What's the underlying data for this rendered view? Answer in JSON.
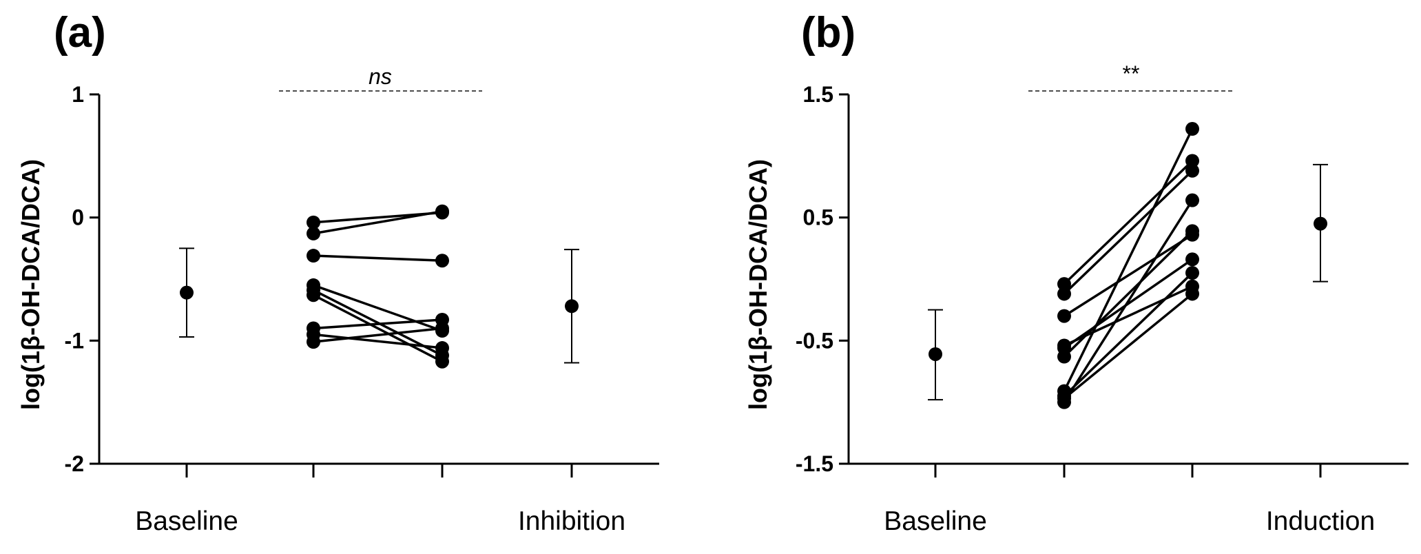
{
  "chart_data": [
    {
      "type": "scatter",
      "panel_label": "(a)",
      "ylabel": "log(1β-OH-DCA/DCA)",
      "ylim": [
        -2,
        1
      ],
      "yticks": [
        1,
        0,
        -1,
        -2
      ],
      "ytick_labels": [
        "1",
        "0",
        "-1",
        "-2"
      ],
      "x_positions": [
        "Baseline",
        "",
        "",
        "Inhibition"
      ],
      "x_labels": [
        "Baseline",
        "Inhibition"
      ],
      "summary": [
        {
          "category": "Baseline",
          "mean": -0.61,
          "upper": -0.25,
          "lower": -0.97
        },
        {
          "category": "Inhibition",
          "mean": -0.72,
          "upper": -0.26,
          "lower": -1.18
        }
      ],
      "paired": [
        [
          -0.04,
          0.04
        ],
        [
          -0.13,
          0.05
        ],
        [
          -0.31,
          -0.35
        ],
        [
          -0.55,
          -0.92
        ],
        [
          -0.59,
          -1.12
        ],
        [
          -0.63,
          -1.17
        ],
        [
          -0.9,
          -0.83
        ],
        [
          -0.95,
          -1.06
        ],
        [
          -1.01,
          -0.9
        ]
      ],
      "significance": "ns"
    },
    {
      "type": "scatter",
      "panel_label": "(b)",
      "ylabel": "log(1β-OH-DCA/DCA)",
      "ylim": [
        -1.5,
        1.5
      ],
      "yticks": [
        1.5,
        0.5,
        -0.5,
        -1.5
      ],
      "ytick_labels": [
        "1.5",
        "0.5",
        "-0.5",
        "-1.5"
      ],
      "x_positions": [
        "Baseline",
        "",
        "",
        "Induction"
      ],
      "x_labels": [
        "Baseline",
        "Induction"
      ],
      "summary": [
        {
          "category": "Baseline",
          "mean": -0.61,
          "upper": -0.25,
          "lower": -0.98
        },
        {
          "category": "Induction",
          "mean": 0.45,
          "upper": 0.93,
          "lower": -0.02
        }
      ],
      "paired": [
        [
          -0.04,
          0.96
        ],
        [
          -0.12,
          0.88
        ],
        [
          -0.3,
          0.36
        ],
        [
          -0.56,
          0.16
        ],
        [
          -0.63,
          0.39
        ],
        [
          -0.91,
          1.22
        ],
        [
          -0.95,
          0.05
        ],
        [
          -1.0,
          0.64
        ],
        [
          -0.97,
          -0.12
        ],
        [
          -0.54,
          -0.06
        ]
      ],
      "significance": "**"
    }
  ]
}
